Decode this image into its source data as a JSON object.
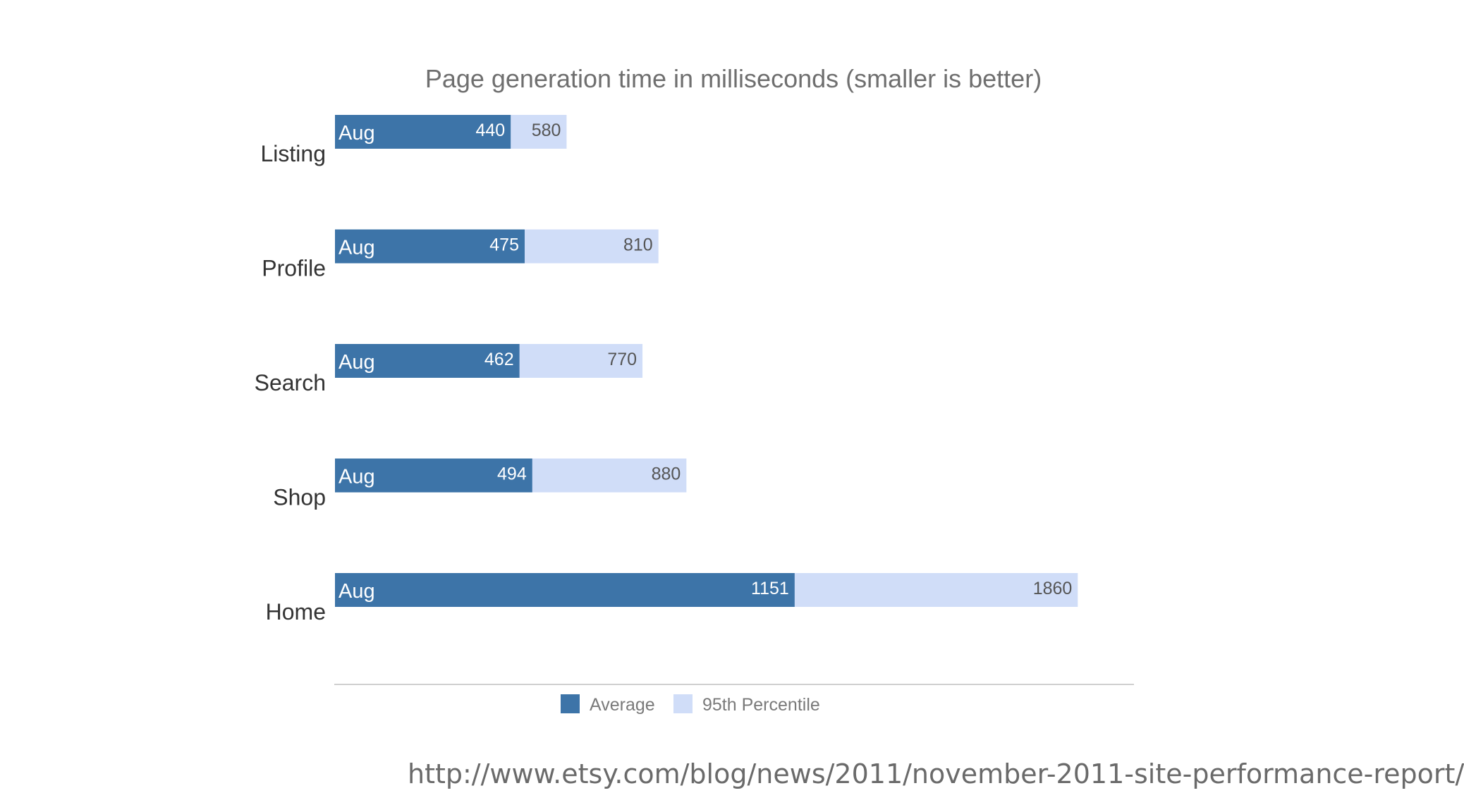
{
  "chart_data": {
    "type": "bar",
    "orientation": "horizontal",
    "title": "Page generation time in milliseconds (smaller is better)",
    "categories": [
      "Listing",
      "Profile",
      "Search",
      "Shop",
      "Home"
    ],
    "segment_label": "Aug",
    "series": [
      {
        "name": "Average",
        "color": "#3d74a8",
        "values": [
          440,
          475,
          462,
          494,
          1151
        ]
      },
      {
        "name": "95th Percentile",
        "color": "#d0ddf8",
        "values": [
          580,
          810,
          770,
          880,
          1860
        ]
      }
    ],
    "xlim": [
      0,
      2000
    ],
    "grid": false,
    "legend": "bottom"
  },
  "source_url": "http://www.etsy.com/blog/news/2011/november-2011-site-performance-report/"
}
